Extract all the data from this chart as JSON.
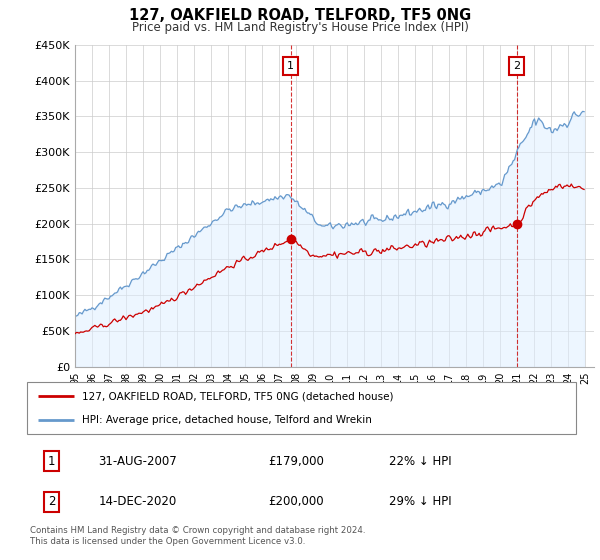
{
  "title": "127, OAKFIELD ROAD, TELFORD, TF5 0NG",
  "subtitle": "Price paid vs. HM Land Registry's House Price Index (HPI)",
  "ylim": [
    0,
    450000
  ],
  "xlim_start": 1995.0,
  "xlim_end": 2025.5,
  "sale1": {
    "date_num": 2007.667,
    "price": 179000,
    "label": "1"
  },
  "sale2": {
    "date_num": 2020.958,
    "price": 200000,
    "label": "2"
  },
  "legend_line1": "127, OAKFIELD ROAD, TELFORD, TF5 0NG (detached house)",
  "legend_line2": "HPI: Average price, detached house, Telford and Wrekin",
  "table_row1": [
    "1",
    "31-AUG-2007",
    "£179,000",
    "22% ↓ HPI"
  ],
  "table_row2": [
    "2",
    "14-DEC-2020",
    "£200,000",
    "29% ↓ HPI"
  ],
  "footnote": "Contains HM Land Registry data © Crown copyright and database right 2024.\nThis data is licensed under the Open Government Licence v3.0.",
  "line_color_red": "#cc0000",
  "line_color_blue": "#6699cc",
  "fill_color_blue": "#ddeeff",
  "background_color": "#ffffff",
  "grid_color": "#cccccc"
}
